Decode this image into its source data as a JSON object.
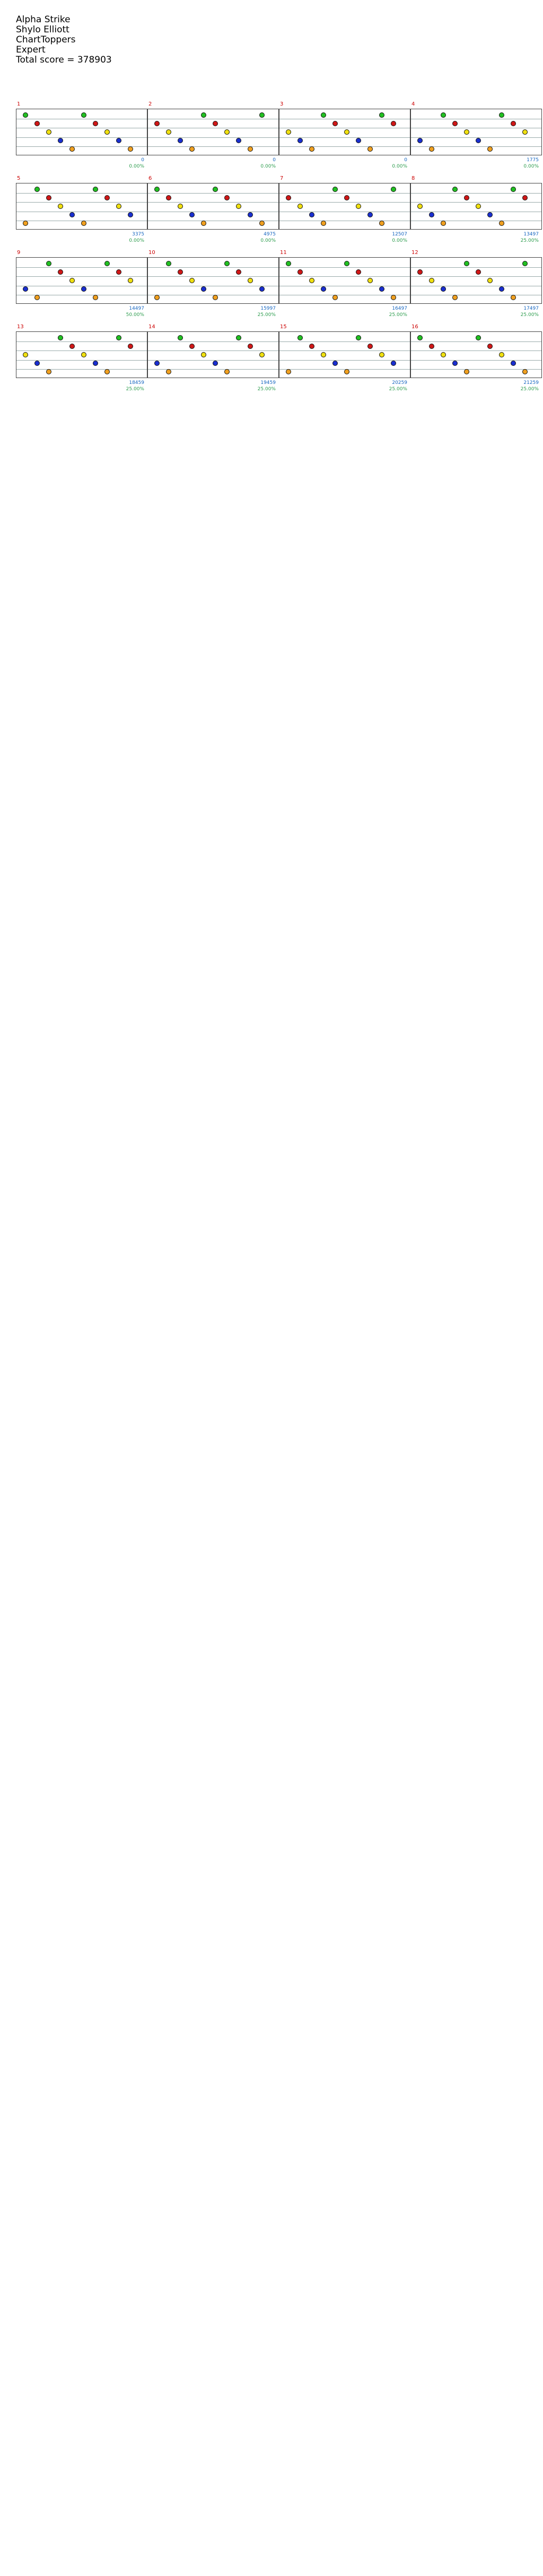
{
  "header": {
    "title": "Alpha Strike",
    "artist": "Shylo Elliott",
    "charter": "ChartToppers",
    "difficulty": "Expert",
    "total_score": "Total score = 378903"
  },
  "chart": {
    "colors": {
      "green": "#22c022",
      "red": "#d01818",
      "yellow": "#f0e010",
      "blue": "#1a2fd0",
      "orange": "#f0a020",
      "sp_phrase": "#3a50e0",
      "overdrive": "#60e060",
      "solo": "#2e8ba0"
    },
    "measures": [
      {
        "n": "1",
        "score": "0",
        "pct": "0.00%"
      },
      {
        "n": "2",
        "score": "0",
        "pct": "0.00%"
      },
      {
        "n": "3",
        "score": "0",
        "pct": "0.00%"
      },
      {
        "n": "4",
        "score": "1775",
        "pct": "0.00%"
      },
      {
        "n": "5",
        "score": "3375",
        "pct": "0.00%"
      },
      {
        "n": "6",
        "score": "4975",
        "pct": "0.00%"
      },
      {
        "n": "7",
        "score": "12507",
        "pct": "0.00%"
      },
      {
        "n": "8",
        "score": "13497",
        "pct": "25.00%"
      },
      {
        "n": "9",
        "score": "14497",
        "pct": "50.00%"
      },
      {
        "n": "10",
        "score": "15997",
        "pct": "25.00%"
      },
      {
        "n": "11",
        "score": "16497",
        "pct": "25.00%"
      },
      {
        "n": "12",
        "score": "17497",
        "pct": "25.00%"
      },
      {
        "n": "13",
        "score": "18459",
        "pct": "25.00%"
      },
      {
        "n": "14",
        "score": "19459",
        "pct": "25.00%"
      },
      {
        "n": "15",
        "score": "20259",
        "pct": "25.00%"
      },
      {
        "n": "16",
        "score": "21259",
        "pct": "25.00%"
      }
    ]
  }
}
